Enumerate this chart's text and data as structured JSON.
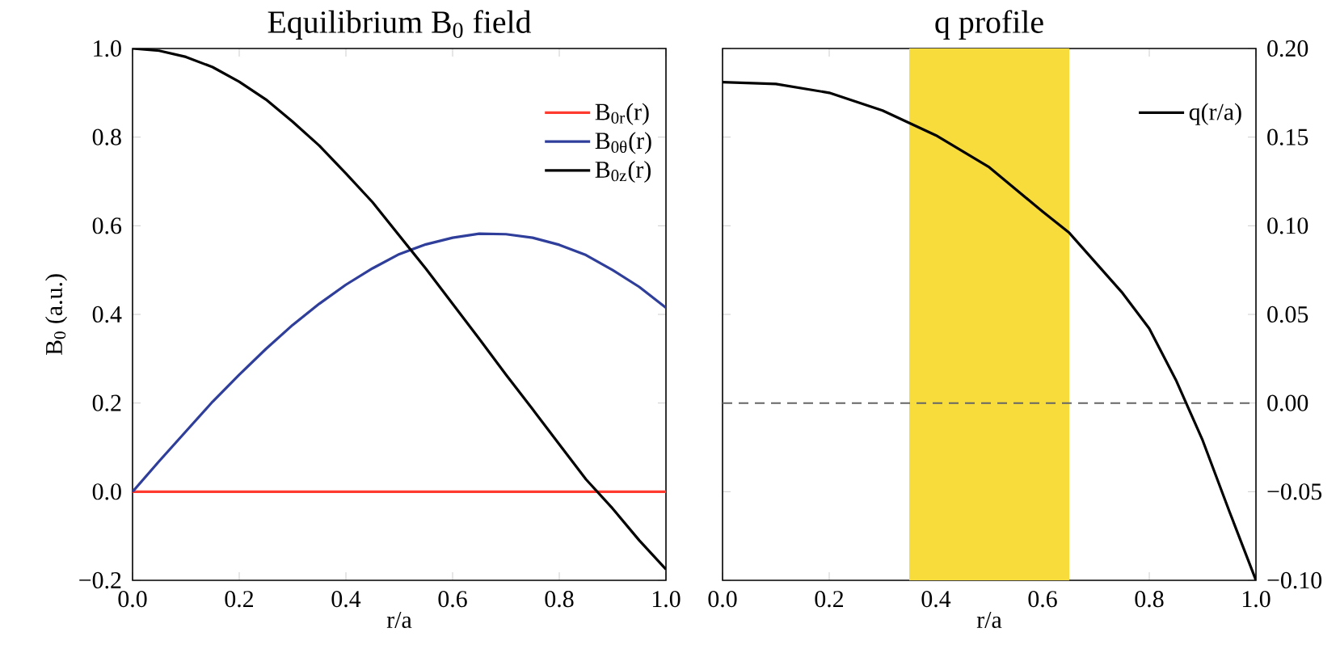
{
  "chart_data": [
    {
      "type": "line",
      "title": "Equilibrium B$_{0}$ field",
      "xlabel": "r/a",
      "ylabel": "B$_{0}$ (a.u.)",
      "x": [
        0,
        0.05,
        0.1,
        0.15,
        0.2,
        0.25,
        0.3,
        0.35,
        0.4,
        0.45,
        0.5,
        0.55,
        0.6,
        0.65,
        0.7,
        0.75,
        0.8,
        0.85,
        0.9,
        0.95,
        1.0
      ],
      "series": [
        {
          "name": "B$_{0r}$(r)",
          "color": "#ff3b2f",
          "values": [
            0,
            0,
            0,
            0,
            0,
            0,
            0,
            0,
            0,
            0,
            0,
            0,
            0,
            0,
            0,
            0,
            0,
            0,
            0,
            0,
            0
          ]
        },
        {
          "name": "B$_{0θ}$(r)",
          "color": "#2e3e9a",
          "values": [
            0,
            0.069,
            0.136,
            0.203,
            0.264,
            0.322,
            0.376,
            0.424,
            0.467,
            0.504,
            0.536,
            0.558,
            0.573,
            0.582,
            0.581,
            0.573,
            0.557,
            0.534,
            0.5,
            0.462,
            0.415
          ]
        },
        {
          "name": "B$_{0z}$(r)",
          "color": "#000000",
          "values": [
            1.0,
            0.995,
            0.981,
            0.958,
            0.925,
            0.885,
            0.835,
            0.781,
            0.718,
            0.653,
            0.578,
            0.503,
            0.424,
            0.345,
            0.264,
            0.186,
            0.107,
            0.028,
            -0.038,
            -0.11,
            -0.175
          ]
        }
      ],
      "xlim": [
        0,
        1
      ],
      "ylim": [
        -0.2,
        1.0
      ],
      "xticks": [
        {
          "value": 0,
          "label": "0.0"
        },
        {
          "value": 0.2,
          "label": "0.2"
        },
        {
          "value": 0.4,
          "label": "0.4"
        },
        {
          "value": 0.6,
          "label": "0.6"
        },
        {
          "value": 0.8,
          "label": "0.8"
        },
        {
          "value": 1.0,
          "label": "1.0"
        }
      ],
      "yticks": [
        {
          "value": -0.2,
          "label": "−0.2"
        },
        {
          "value": 0,
          "label": "0.0"
        },
        {
          "value": 0.2,
          "label": "0.2"
        },
        {
          "value": 0.4,
          "label": "0.4"
        },
        {
          "value": 0.6,
          "label": "0.6"
        },
        {
          "value": 0.8,
          "label": "0.8"
        },
        {
          "value": 1.0,
          "label": "1.0"
        }
      ],
      "legend": "top right"
    },
    {
      "type": "line",
      "title": "q profile",
      "xlabel": "r/a",
      "x": [
        0,
        0.1,
        0.2,
        0.3,
        0.35,
        0.4,
        0.5,
        0.6,
        0.65,
        0.7,
        0.75,
        0.8,
        0.85,
        0.9,
        0.95,
        1.0
      ],
      "series": [
        {
          "name": "q(r/a)",
          "color": "#000000",
          "axis": "y2",
          "values": [
            0.181,
            0.18,
            0.175,
            0.165,
            0.158,
            0.151,
            0.133,
            0.108,
            0.096,
            0.079,
            0.062,
            0.042,
            0.013,
            -0.021,
            -0.061,
            -0.1
          ]
        }
      ],
      "xlim": [
        0,
        1
      ],
      "y2lim": [
        -0.1,
        0.2
      ],
      "xticks": [
        {
          "value": 0,
          "label": "0.0"
        },
        {
          "value": 0.2,
          "label": "0.2"
        },
        {
          "value": 0.4,
          "label": "0.4"
        },
        {
          "value": 0.6,
          "label": "0.6"
        },
        {
          "value": 0.8,
          "label": "0.8"
        },
        {
          "value": 1.0,
          "label": "1.0"
        }
      ],
      "y2ticks": [
        {
          "value": -0.1,
          "label": "−0.10"
        },
        {
          "value": -0.05,
          "label": "−0.05"
        },
        {
          "value": 0,
          "label": "0.00"
        },
        {
          "value": 0.05,
          "label": "0.05"
        },
        {
          "value": 0.1,
          "label": "0.10"
        },
        {
          "value": 0.15,
          "label": "0.15"
        },
        {
          "value": 0.2,
          "label": "0.20"
        }
      ],
      "bands": [
        {
          "axis": "x",
          "from": 0.35,
          "to": 0.65,
          "color": "#f7dc3c"
        }
      ],
      "ref_lines": [
        {
          "axis": "y2",
          "value": 0,
          "color": "#666666",
          "line_style": "dashed"
        }
      ],
      "legend": "top right"
    }
  ]
}
